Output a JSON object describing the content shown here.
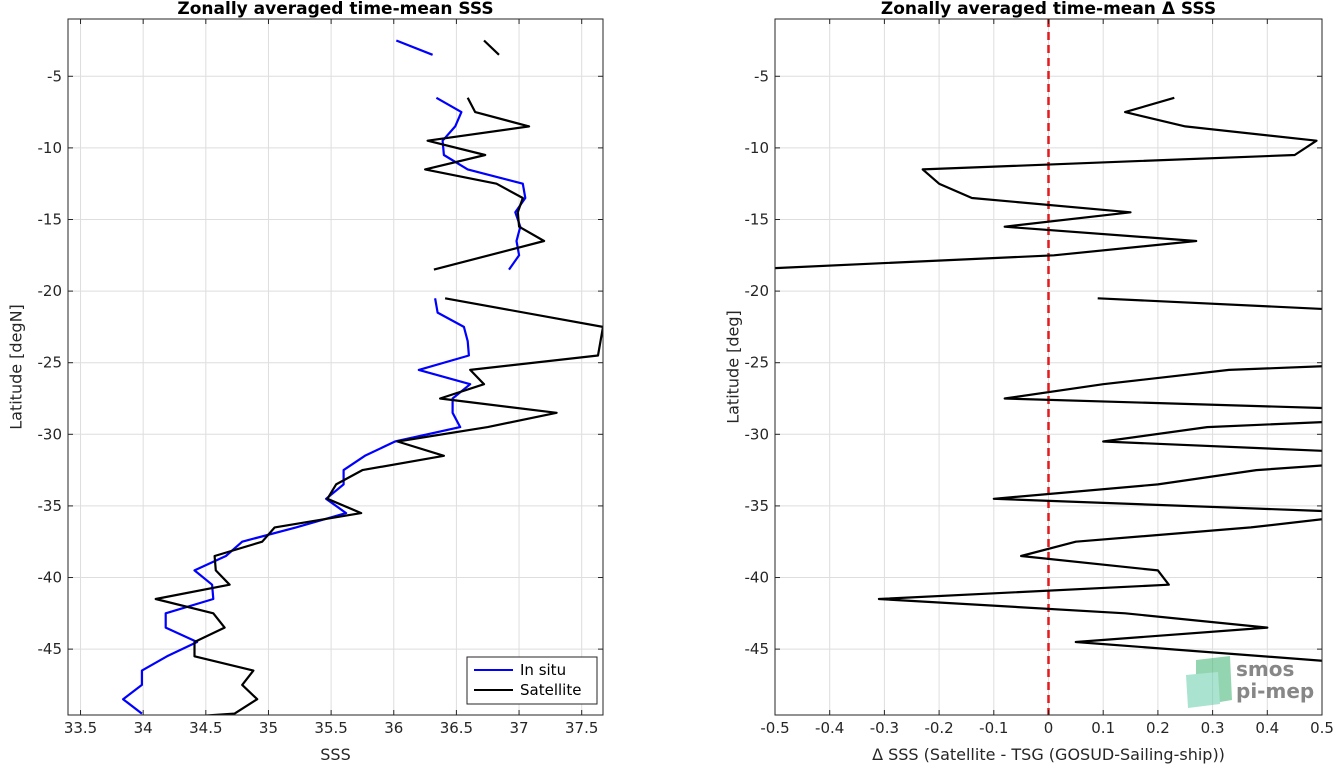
{
  "chart_data": [
    {
      "type": "line",
      "title": "Zonally averaged time-mean SSS",
      "xlabel": "SSS",
      "ylabel": "Latitude [degN]",
      "xlim": [
        33.4,
        37.67
      ],
      "ylim": [
        -49.6,
        -1.0
      ],
      "xticks": [
        33.5,
        34,
        34.5,
        35,
        35.5,
        36,
        36.5,
        37,
        37.5
      ],
      "xtick_labels": [
        "33.5",
        "34",
        "34.5",
        "35",
        "35.5",
        "36",
        "36.5",
        "37",
        "37.5"
      ],
      "yticks": [
        -5,
        -10,
        -15,
        -20,
        -25,
        -30,
        -35,
        -40,
        -45
      ],
      "ytick_labels": [
        "-5",
        "-10",
        "-15",
        "-20",
        "-25",
        "-30",
        "-35",
        "-40",
        "-45"
      ],
      "grid": true,
      "legend_position": "bottom-right",
      "series": [
        {
          "name": "In situ",
          "color": "#0000ff",
          "segments": [
            [
              [
                36.02,
                -2.5
              ],
              [
                36.31,
                -3.5
              ]
            ],
            [
              [
                36.34,
                -6.5
              ],
              [
                36.54,
                -7.5
              ],
              [
                36.49,
                -8.5
              ],
              [
                36.39,
                -9.5
              ],
              [
                36.4,
                -10.5
              ],
              [
                36.59,
                -11.5
              ],
              [
                37.03,
                -12.5
              ],
              [
                37.05,
                -13.5
              ],
              [
                36.97,
                -14.5
              ],
              [
                37.01,
                -15.5
              ],
              [
                36.98,
                -16.5
              ],
              [
                37.0,
                -17.5
              ],
              [
                36.92,
                -18.5
              ]
            ],
            [
              [
                36.33,
                -20.5
              ],
              [
                36.35,
                -21.5
              ],
              [
                36.56,
                -22.5
              ],
              [
                36.59,
                -23.5
              ],
              [
                36.6,
                -24.5
              ],
              [
                36.2,
                -25.5
              ],
              [
                36.61,
                -26.5
              ],
              [
                36.47,
                -27.5
              ],
              [
                36.47,
                -28.5
              ],
              [
                36.53,
                -29.5
              ],
              [
                36.01,
                -30.5
              ],
              [
                35.77,
                -31.5
              ],
              [
                35.6,
                -32.5
              ],
              [
                35.6,
                -33.5
              ],
              [
                35.46,
                -34.5
              ],
              [
                35.62,
                -35.5
              ],
              [
                35.22,
                -36.5
              ],
              [
                34.79,
                -37.5
              ],
              [
                34.66,
                -38.5
              ],
              [
                34.41,
                -39.5
              ],
              [
                34.55,
                -40.5
              ],
              [
                34.56,
                -41.5
              ],
              [
                34.18,
                -42.5
              ],
              [
                34.18,
                -43.5
              ],
              [
                34.43,
                -44.5
              ],
              [
                34.19,
                -45.5
              ],
              [
                33.99,
                -46.5
              ],
              [
                33.99,
                -47.5
              ],
              [
                33.84,
                -48.5
              ],
              [
                33.99,
                -49.5
              ]
            ]
          ]
        },
        {
          "name": "Satellite",
          "color": "#000000",
          "segments": [
            [
              [
                36.72,
                -2.5
              ],
              [
                36.84,
                -3.5
              ]
            ],
            [
              [
                36.59,
                -6.5
              ],
              [
                36.65,
                -7.5
              ],
              [
                37.08,
                -8.5
              ],
              [
                36.27,
                -9.5
              ],
              [
                36.73,
                -10.5
              ],
              [
                36.25,
                -11.5
              ],
              [
                36.82,
                -12.5
              ],
              [
                37.03,
                -13.5
              ],
              [
                36.99,
                -14.5
              ],
              [
                37.0,
                -15.5
              ],
              [
                37.2,
                -16.5
              ],
              [
                36.32,
                -18.5
              ]
            ],
            [
              [
                36.41,
                -20.5
              ],
              [
                37.67,
                -22.5
              ],
              [
                37.63,
                -24.5
              ],
              [
                36.61,
                -25.5
              ],
              [
                36.72,
                -26.5
              ],
              [
                36.37,
                -27.5
              ],
              [
                37.3,
                -28.5
              ],
              [
                36.75,
                -29.5
              ],
              [
                36.03,
                -30.5
              ],
              [
                36.4,
                -31.5
              ],
              [
                35.75,
                -32.5
              ],
              [
                35.54,
                -33.5
              ],
              [
                35.47,
                -34.5
              ],
              [
                35.74,
                -35.5
              ],
              [
                35.05,
                -36.5
              ],
              [
                34.95,
                -37.5
              ],
              [
                34.57,
                -38.5
              ],
              [
                34.58,
                -39.5
              ],
              [
                34.69,
                -40.5
              ],
              [
                34.1,
                -41.5
              ],
              [
                34.56,
                -42.5
              ],
              [
                34.65,
                -43.5
              ],
              [
                34.41,
                -44.5
              ],
              [
                34.41,
                -45.5
              ],
              [
                34.88,
                -46.5
              ],
              [
                34.79,
                -47.5
              ],
              [
                34.91,
                -48.5
              ],
              [
                34.73,
                -49.5
              ],
              [
                34.4,
                -49.7
              ]
            ]
          ]
        }
      ]
    },
    {
      "type": "line",
      "title": "Zonally averaged time-mean Δ SSS",
      "xlabel": "Δ SSS (Satellite - TSG (GOSUD-Sailing-ship))",
      "ylabel": "Latitude [deg]",
      "xlim": [
        -0.5,
        0.5
      ],
      "ylim": [
        -49.6,
        -1.0
      ],
      "xticks": [
        -0.5,
        -0.4,
        -0.3,
        -0.2,
        -0.1,
        0,
        0.1,
        0.2,
        0.3,
        0.4,
        0.5
      ],
      "xtick_labels": [
        "-0.5",
        "-0.4",
        "-0.3",
        "-0.2",
        "-0.1",
        "0",
        "0.1",
        "0.2",
        "0.3",
        "0.4",
        "0.5"
      ],
      "yticks": [
        -5,
        -10,
        -15,
        -20,
        -25,
        -30,
        -35,
        -40,
        -45
      ],
      "ytick_labels": [
        "-5",
        "-10",
        "-15",
        "-20",
        "-25",
        "-30",
        "-35",
        "-40",
        "-45"
      ],
      "grid": true,
      "zero_line": {
        "value": 0,
        "color": "#e41a1c",
        "style": "dashed"
      },
      "series": [
        {
          "color": "#000000",
          "segments": [
            [
              [
                0.23,
                -6.5
              ],
              [
                0.14,
                -7.5
              ],
              [
                0.25,
                -8.5
              ],
              [
                0.49,
                -9.5
              ],
              [
                0.45,
                -10.5
              ],
              [
                -0.23,
                -11.5
              ],
              [
                -0.2,
                -12.5
              ],
              [
                -0.14,
                -13.5
              ],
              [
                0.15,
                -14.5
              ],
              [
                -0.08,
                -15.5
              ],
              [
                0.27,
                -16.5
              ],
              [
                0.01,
                -17.5
              ],
              [
                -0.56,
                -18.5
              ]
            ],
            [
              [
                0.09,
                -20.5
              ],
              [
                0.53,
                -21.3
              ]
            ],
            [
              [
                0.53,
                -25.2
              ],
              [
                0.33,
                -25.5
              ],
              [
                0.1,
                -26.5
              ],
              [
                -0.08,
                -27.5
              ],
              [
                0.53,
                -28.2
              ]
            ],
            [
              [
                0.53,
                -29.1
              ],
              [
                0.29,
                -29.5
              ],
              [
                0.1,
                -30.5
              ],
              [
                0.53,
                -31.2
              ]
            ],
            [
              [
                0.53,
                -32.1
              ],
              [
                0.38,
                -32.5
              ],
              [
                0.2,
                -33.5
              ],
              [
                -0.1,
                -34.5
              ],
              [
                0.53,
                -35.4
              ]
            ],
            [
              [
                0.53,
                -35.8
              ],
              [
                0.37,
                -36.5
              ],
              [
                0.05,
                -37.5
              ],
              [
                -0.05,
                -38.5
              ],
              [
                0.2,
                -39.5
              ],
              [
                0.22,
                -40.5
              ],
              [
                -0.31,
                -41.5
              ],
              [
                0.14,
                -42.5
              ],
              [
                0.4,
                -43.5
              ],
              [
                0.05,
                -44.5
              ],
              [
                0.53,
                -45.9
              ]
            ]
          ]
        }
      ]
    }
  ],
  "legend": {
    "entries": [
      {
        "label": "In situ",
        "color": "#0000ff"
      },
      {
        "label": "Satellite",
        "color": "#000000"
      }
    ]
  },
  "logo": {
    "line1": "smos",
    "line2": "pi-mep",
    "color": "#2e8b57"
  }
}
